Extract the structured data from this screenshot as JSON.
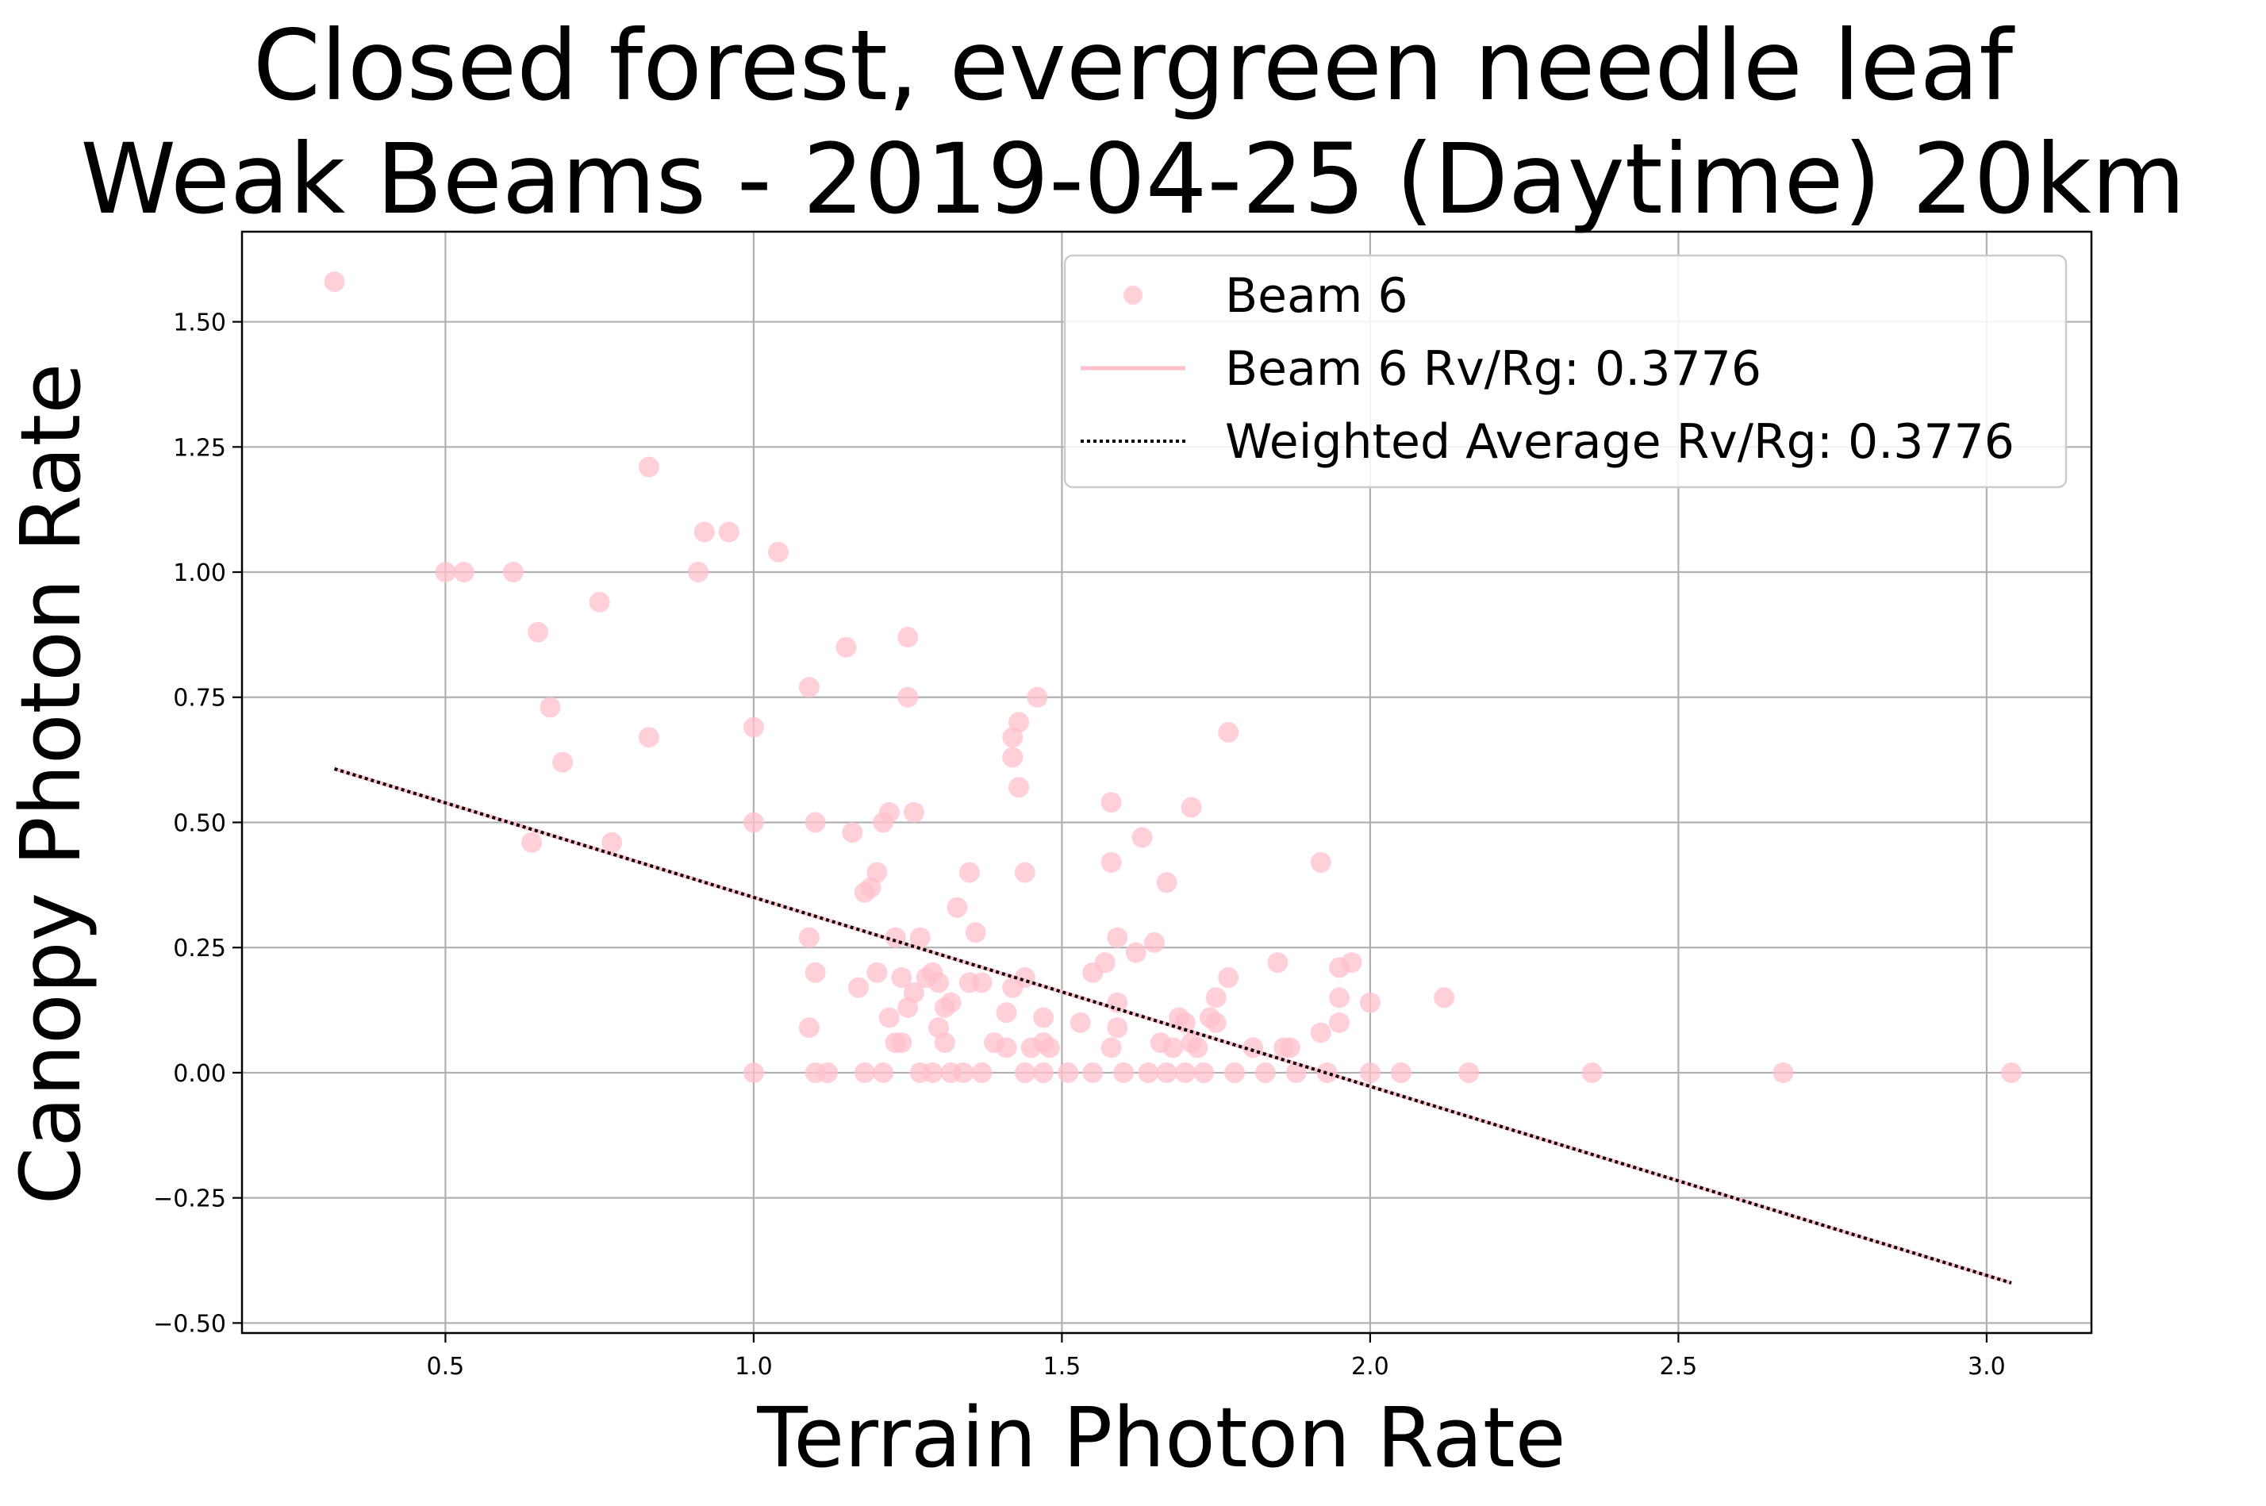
{
  "chart_data": {
    "type": "scatter",
    "title": [
      "Closed forest, evergreen needle leaf",
      "Weak Beams - 2019-04-25 (Daytime) 20km"
    ],
    "xlabel": "Terrain Photon Rate",
    "ylabel": "Canopy Photon Rate",
    "xlim": [
      0.17,
      3.17
    ],
    "ylim": [
      -0.52,
      1.68
    ],
    "xticks": [
      0.5,
      1.0,
      1.5,
      2.0,
      2.5,
      3.0
    ],
    "xtick_labels": [
      "0.5",
      "1.0",
      "1.5",
      "2.0",
      "2.5",
      "3.0"
    ],
    "yticks": [
      -0.5,
      -0.25,
      0.0,
      0.25,
      0.5,
      0.75,
      1.0,
      1.25,
      1.5
    ],
    "ytick_labels": [
      "−0.50",
      "−0.25",
      "0.00",
      "0.25",
      "0.50",
      "0.75",
      "1.00",
      "1.25",
      "1.50"
    ],
    "grid": true,
    "legend_position": "top-right",
    "colors": {
      "beam6": "#ffc0cb",
      "weighted_average": "#000000"
    },
    "series": [
      {
        "name": "Beam 6",
        "kind": "scatter",
        "color": "#ffc0cb",
        "x": [
          0.32,
          0.5,
          0.53,
          0.61,
          0.64,
          0.65,
          0.67,
          0.69,
          0.75,
          0.77,
          0.83,
          0.83,
          0.91,
          0.92,
          0.96,
          1.0,
          1.0,
          1.0,
          1.04,
          1.09,
          1.09,
          1.09,
          1.1,
          1.1,
          1.15,
          1.16,
          1.17,
          1.18,
          1.19,
          1.2,
          1.2,
          1.21,
          1.22,
          1.22,
          1.23,
          1.23,
          1.24,
          1.24,
          1.25,
          1.25,
          1.25,
          1.26,
          1.26,
          1.27,
          1.28,
          1.29,
          1.3,
          1.3,
          1.31,
          1.31,
          1.32,
          1.33,
          1.34,
          1.35,
          1.35,
          1.36,
          1.37,
          1.39,
          1.41,
          1.41,
          1.42,
          1.42,
          1.42,
          1.43,
          1.43,
          1.44,
          1.44,
          1.45,
          1.46,
          1.47,
          1.47,
          1.48,
          1.53,
          1.55,
          1.57,
          1.58,
          1.58,
          1.58,
          1.59,
          1.59,
          1.59,
          1.62,
          1.63,
          1.65,
          1.66,
          1.67,
          1.68,
          1.69,
          1.7,
          1.71,
          1.71,
          1.72,
          1.74,
          1.75,
          1.75,
          1.77,
          1.77,
          1.81,
          1.85,
          1.86,
          1.87,
          1.92,
          1.92,
          1.95,
          1.95,
          1.95,
          1.97,
          2.0,
          2.12,
          1.1,
          1.12,
          1.18,
          1.21,
          1.27,
          1.29,
          1.32,
          1.37,
          1.44,
          1.47,
          1.51,
          1.55,
          1.6,
          1.64,
          1.67,
          1.7,
          1.73,
          1.78,
          1.83,
          1.88,
          1.93,
          2.0,
          2.05,
          2.16,
          2.36,
          2.67,
          3.04
        ],
        "y": [
          1.58,
          1.0,
          1.0,
          1.0,
          0.46,
          0.88,
          0.73,
          0.62,
          0.94,
          0.46,
          1.21,
          0.67,
          1.0,
          1.08,
          1.08,
          0.69,
          0.5,
          0.0,
          1.04,
          0.77,
          0.27,
          0.09,
          0.5,
          0.2,
          0.85,
          0.48,
          0.17,
          0.36,
          0.37,
          0.4,
          0.2,
          0.5,
          0.52,
          0.11,
          0.27,
          0.06,
          0.19,
          0.06,
          0.87,
          0.75,
          0.13,
          0.52,
          0.16,
          0.27,
          0.19,
          0.2,
          0.18,
          0.09,
          0.13,
          0.06,
          0.14,
          0.33,
          0.0,
          0.4,
          0.18,
          0.28,
          0.18,
          0.06,
          0.12,
          0.05,
          0.67,
          0.63,
          0.17,
          0.57,
          0.7,
          0.4,
          0.19,
          0.05,
          0.75,
          0.11,
          0.06,
          0.05,
          0.1,
          0.2,
          0.22,
          0.42,
          0.54,
          0.05,
          0.27,
          0.14,
          0.09,
          0.24,
          0.47,
          0.26,
          0.06,
          0.38,
          0.05,
          0.11,
          0.1,
          0.53,
          0.06,
          0.05,
          0.11,
          0.15,
          0.1,
          0.68,
          0.19,
          0.05,
          0.22,
          0.05,
          0.05,
          0.42,
          0.08,
          0.21,
          0.15,
          0.1,
          0.22,
          0.14,
          0.15,
          0.0,
          0.0,
          0.0,
          0.0,
          0.0,
          0.0,
          0.0,
          0.0,
          0.0,
          0.0,
          0.0,
          0.0,
          0.0,
          0.0,
          0.0,
          0.0,
          0.0,
          0.0,
          0.0,
          0.0,
          0.0,
          0.0,
          0.0,
          0.0,
          0.0,
          0.0,
          0.0
        ]
      },
      {
        "name": "Beam 6 Rv/Rg: 0.3776",
        "kind": "line",
        "color": "#ffc0cb",
        "x": [
          0.32,
          3.04
        ],
        "y": [
          0.607,
          -0.42
        ]
      },
      {
        "name": "Weighted Average Rv/Rg: 0.3776",
        "kind": "line",
        "style": "dotted",
        "color": "#000000",
        "x": [
          0.32,
          3.04
        ],
        "y": [
          0.607,
          -0.42
        ]
      }
    ]
  }
}
